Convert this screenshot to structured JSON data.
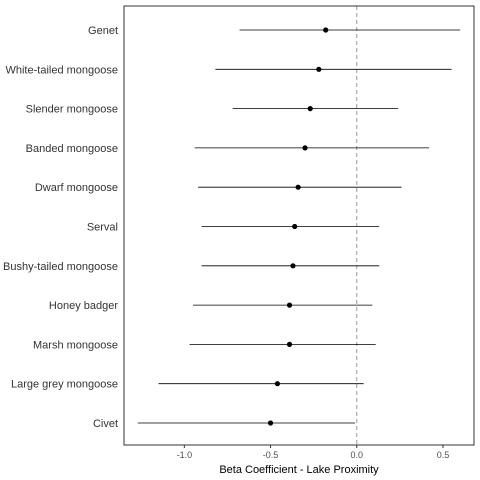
{
  "chart_data": {
    "type": "forest",
    "categories": [
      "Genet",
      "White-tailed mongoose",
      "Slender mongoose",
      "Banded mongoose",
      "Dwarf mongoose",
      "Serval",
      "Bushy-tailed mongoose",
      "Honey badger",
      "Marsh mongoose",
      "Large grey mongoose",
      "Civet"
    ],
    "estimates": [
      -0.18,
      -0.22,
      -0.27,
      -0.3,
      -0.34,
      -0.36,
      -0.37,
      -0.39,
      -0.39,
      -0.46,
      -0.5
    ],
    "lower": [
      -0.68,
      -0.82,
      -0.72,
      -0.94,
      -0.92,
      -0.9,
      -0.9,
      -0.95,
      -0.97,
      -1.15,
      -1.27
    ],
    "upper": [
      0.6,
      0.55,
      0.24,
      0.42,
      0.26,
      0.13,
      0.13,
      0.09,
      0.11,
      0.04,
      -0.01
    ],
    "xlabel": "Beta Coefficient - Lake Proximity",
    "ylabel": "",
    "xlim": [
      -1.35,
      0.68
    ],
    "xticks": [
      -1.0,
      -0.5,
      0.0,
      0.5
    ],
    "xtick_labels": [
      "-1.0",
      "-0.5",
      "0.0",
      "0.5"
    ],
    "reference_line": 0,
    "grid": false,
    "colors": {
      "point": "#000000",
      "interval": "#000000",
      "reference": "#999999",
      "frame": "#333333"
    }
  }
}
